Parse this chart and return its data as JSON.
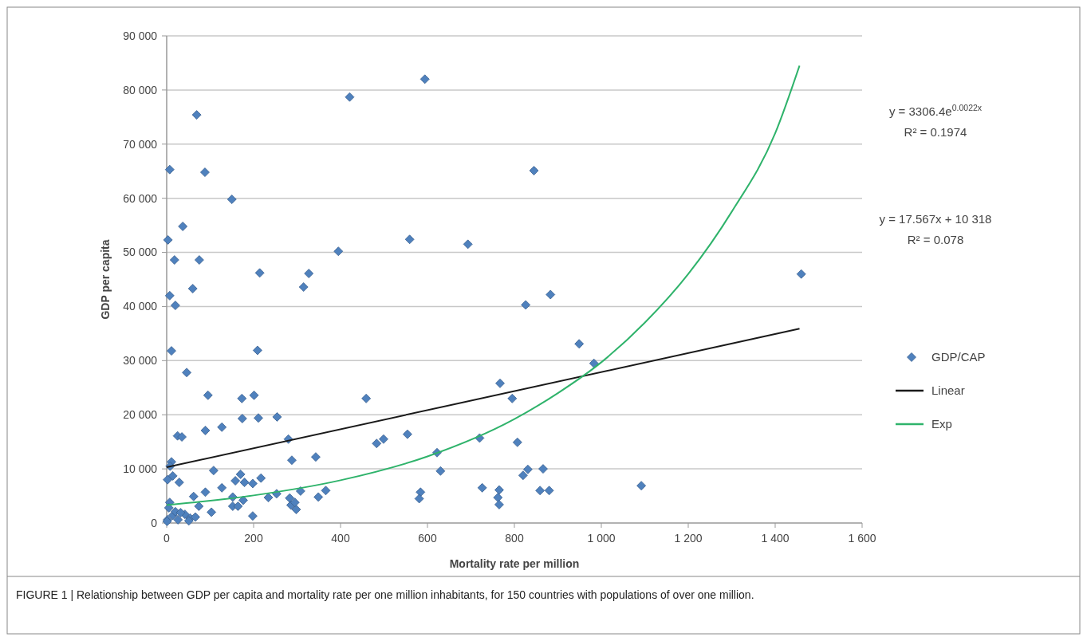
{
  "chart_data": {
    "type": "scatter",
    "xlabel": "Mortality rate per million",
    "ylabel": "GDP per capita",
    "xlim": [
      0,
      1600
    ],
    "ylim": [
      0,
      90000
    ],
    "xticks": [
      0,
      200,
      400,
      600,
      800,
      {
        "value": 1000,
        "label": "1 000"
      },
      {
        "value": 1200,
        "label": "1 200"
      },
      {
        "value": 1400,
        "label": "1 400"
      },
      {
        "value": 1600,
        "label": "1 600"
      }
    ],
    "yticks": [
      0,
      {
        "value": 10000,
        "label": "10 000"
      },
      {
        "value": 20000,
        "label": "20 000"
      },
      {
        "value": 30000,
        "label": "30 000"
      },
      {
        "value": 40000,
        "label": "40 000"
      },
      {
        "value": 50000,
        "label": "50 000"
      },
      {
        "value": 60000,
        "label": "60 000"
      },
      {
        "value": 70000,
        "label": "70 000"
      },
      {
        "value": 80000,
        "label": "80 000"
      },
      {
        "value": 90000,
        "label": "90 000"
      }
    ],
    "grid": "y",
    "legend": "right",
    "series": [
      {
        "name": "GDP/CAP",
        "marker": "diamond",
        "color": "#4f81bd",
        "x": [
          421,
          69,
          7,
          88,
          150,
          37,
          3,
          18,
          75,
          395,
          214,
          327,
          315,
          60,
          7,
          20,
          11,
          209,
          46,
          95,
          173,
          201,
          459,
          174,
          211,
          254,
          25,
          35,
          89,
          127,
          280,
          483,
          499,
          288,
          343,
          11,
          8,
          108,
          2,
          14,
          29,
          170,
          158,
          179,
          198,
          217,
          89,
          127,
          62,
          152,
          176,
          234,
          253,
          283,
          308,
          349,
          366,
          286,
          298,
          295,
          152,
          164,
          74,
          103,
          198,
          7,
          5,
          2,
          14,
          26,
          42,
          54,
          66,
          20,
          51,
          1,
          32,
          1460,
          826,
          883,
          949,
          983,
          767,
          795,
          554,
          720,
          807,
          622,
          630,
          831,
          820,
          866,
          584,
          581,
          726,
          765,
          762,
          765,
          859,
          880,
          1092,
          594,
          845,
          559,
          693
        ],
        "values": [
          78700,
          75400,
          65300,
          64800,
          59800,
          54800,
          52300,
          48600,
          48600,
          50200,
          46200,
          46100,
          43600,
          43300,
          42000,
          40200,
          31800,
          31900,
          27800,
          23600,
          23000,
          23600,
          23000,
          19300,
          19400,
          19600,
          16100,
          15900,
          17100,
          17700,
          15500,
          14700,
          15500,
          11600,
          12200,
          11300,
          10500,
          9700,
          8000,
          8700,
          7500,
          9000,
          7800,
          7500,
          7300,
          8300,
          5700,
          6500,
          4900,
          4800,
          4200,
          4700,
          5400,
          4600,
          5900,
          4800,
          6000,
          3300,
          2500,
          3800,
          3100,
          3100,
          3100,
          2000,
          1300,
          3800,
          2800,
          600,
          1400,
          600,
          1600,
          900,
          1100,
          2100,
          400,
          300,
          1900,
          46000,
          40300,
          42200,
          33100,
          29500,
          25800,
          23000,
          16400,
          15700,
          14900,
          13000,
          9600,
          9900,
          8800,
          10000,
          5700,
          4500,
          6500,
          6100,
          4700,
          3400,
          6000,
          6000,
          6900,
          82000,
          65100,
          52400,
          51500
        ]
      },
      {
        "name": "Linear",
        "type": "line",
        "color": "#1a1a1a",
        "x": [
          0,
          1456
        ],
        "values": [
          10300,
          35900
        ]
      },
      {
        "name": "Exp",
        "type": "line",
        "color": "#2fb36b",
        "x": [
          0,
          200,
          400,
          600,
          800,
          900,
          1000,
          1100,
          1200,
          1300,
          1400,
          1456
        ],
        "values": [
          3300,
          5100,
          7900,
          12300,
          19200,
          24000,
          29700,
          37000,
          46000,
          57500,
          72000,
          84500
        ]
      }
    ],
    "annotations": [
      "y = 3306.4e$^{0.0022x}$",
      "R² = 0.1974",
      "y = 17.567x + 10 318",
      "R² = 0.078",
      "FIGURE 1 | Relationship between GDP per capita and mortality rate per one million inhabitants, for 150 countries with populations of over one million."
    ]
  }
}
